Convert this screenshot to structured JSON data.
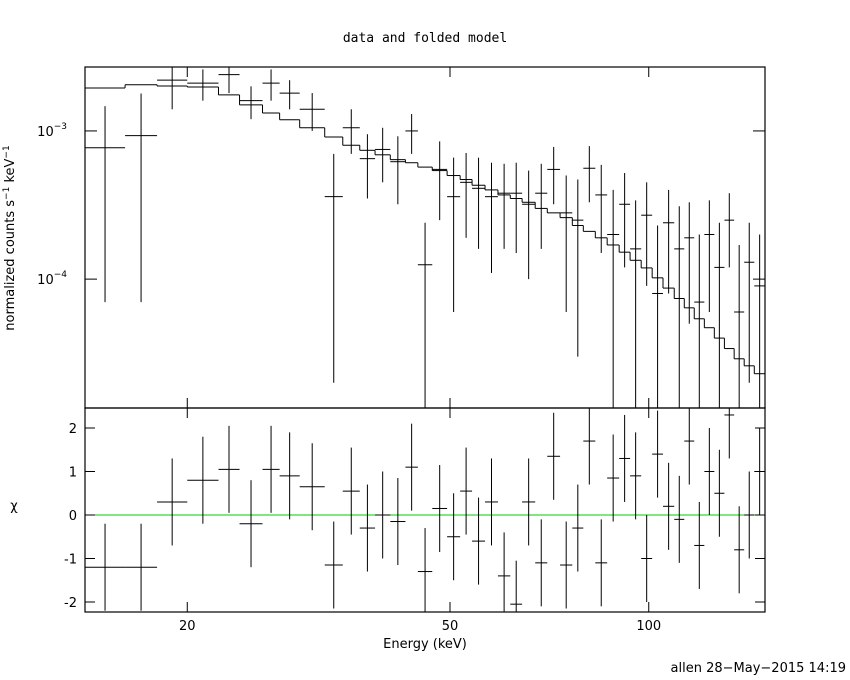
{
  "chart_data": {
    "type": "errorbar",
    "title": "data and folded model",
    "xlabel": "Energy (keV)",
    "ylabel_parts": [
      "normalized counts s",
      "−1",
      " keV",
      "−1"
    ],
    "footer": "allen 28−May−2015 14:19",
    "log_x": true,
    "log_y": true,
    "xlim": [
      14,
      150
    ],
    "xticks": [
      20,
      50,
      100
    ],
    "ylim": [
      1.35e-05,
      0.0027
    ],
    "yticks": [
      {
        "value": 0.001,
        "label": "10",
        "exponent": "−3"
      },
      {
        "value": 0.0001,
        "label": "10",
        "exponent": "−4"
      }
    ],
    "bin_edges": [
      14.0,
      16.1,
      18.0,
      20.0,
      22.3,
      24.0,
      26.0,
      27.6,
      29.6,
      32.3,
      34.4,
      36.5,
      38.5,
      40.6,
      42.8,
      44.7,
      47.0,
      49.5,
      51.8,
      54.0,
      56.5,
      59.1,
      61.7,
      64.3,
      67.3,
      70.2,
      73.4,
      76.6,
      79.6,
      83.0,
      86.5,
      90.2,
      93.7,
      97.4,
      101.2,
      105.1,
      109.3,
      113.2,
      117.2,
      121.4,
      125.7,
      130.2,
      134.7,
      139.5,
      144.5,
      150.0
    ],
    "data": {
      "color": "#000000",
      "values": [
        0.00077,
        0.00093,
        0.0022,
        0.0021,
        0.0024,
        0.0016,
        0.0021,
        0.0018,
        0.0014,
        0.00036,
        0.00105,
        0.00065,
        0.00075,
        0.00062,
        0.001,
        0.000125,
        0.00055,
        0.00036,
        0.00045,
        0.00041,
        0.00036,
        0.00038,
        0.00038,
        0.00032,
        0.00038,
        0.00055,
        0.00028,
        0.00025,
        0.00056,
        0.00037,
        0.0002,
        0.00032,
        0.00016,
        0.00027,
        8e-05,
        0.00024,
        0.00016,
        0.00019,
        7e-05,
        0.0002,
        0.00012,
        0.00025,
        6e-05,
        0.00013,
        9e-05
      ],
      "errors": [
        0.0007,
        0.00086,
        0.0008,
        0.0005,
        0.0006,
        0.0004,
        0.0005,
        0.0004,
        0.0004,
        0.00034,
        0.00035,
        0.0003,
        0.0003,
        0.0003,
        0.0003,
        0.000115,
        0.0003,
        0.0003,
        0.00026,
        0.00025,
        0.00025,
        0.00022,
        0.00023,
        0.00022,
        0.00022,
        0.00023,
        0.00022,
        0.00022,
        0.00023,
        0.00022,
        0.0002,
        0.0002,
        0.00018,
        0.00018,
        0.00015,
        0.00016,
        0.00015,
        0.00014,
        0.00013,
        0.00014,
        0.00012,
        0.00013,
        0.00011,
        0.00011,
        0.00011
      ]
    },
    "model": {
      "color": "#000000",
      "values": [
        0.00195,
        0.00205,
        0.00201,
        0.00198,
        0.00175,
        0.0015,
        0.00132,
        0.00119,
        0.00105,
        0.00091,
        0.0008,
        0.00074,
        0.00069,
        0.00064,
        0.00061,
        0.00057,
        0.00054,
        0.0005,
        0.00047,
        0.00043,
        0.0004,
        0.00037,
        0.00035,
        0.00033,
        0.0003,
        0.00028,
        0.00026,
        0.00023,
        0.00021,
        0.00019,
        0.00017,
        0.000152,
        0.000134,
        0.000119,
        0.000102,
        8.7e-05,
        7.4e-05,
        6.4e-05,
        5.4e-05,
        4.7e-05,
        4e-05,
        3.4e-05,
        2.9e-05,
        2.6e-05,
        2.3e-05
      ]
    },
    "residuals": {
      "ylabel": "χ",
      "ylim": [
        -2.23,
        2.46
      ],
      "yticks": [
        -2,
        -1,
        0,
        1,
        2
      ],
      "reference": 0,
      "reference_color": "#00cc00",
      "values": [
        -1.2,
        -1.2,
        0.3,
        0.8,
        1.05,
        -0.2,
        1.05,
        0.9,
        0.65,
        -1.15,
        0.55,
        -0.3,
        0.0,
        -0.15,
        1.1,
        -1.3,
        0.15,
        -0.5,
        0.55,
        -0.6,
        0.3,
        -1.4,
        -2.05,
        0.3,
        -1.1,
        1.35,
        -1.15,
        -0.3,
        1.7,
        -1.1,
        0.85,
        1.3,
        0.9,
        -1.0,
        1.4,
        0.2,
        -0.1,
        1.7,
        -0.7,
        1.0,
        0.5,
        2.3,
        -0.8,
        0.0,
        1.0
      ],
      "errors": [
        1,
        1,
        1,
        1,
        1,
        1,
        1,
        1,
        1,
        1,
        1,
        1,
        1,
        1,
        1,
        1,
        1,
        1,
        1,
        1,
        1,
        1,
        1,
        1,
        1,
        1,
        1,
        1,
        1,
        1,
        1,
        1,
        1,
        1,
        1,
        1,
        1,
        1,
        1,
        1,
        1,
        1,
        1,
        1,
        1
      ]
    }
  }
}
